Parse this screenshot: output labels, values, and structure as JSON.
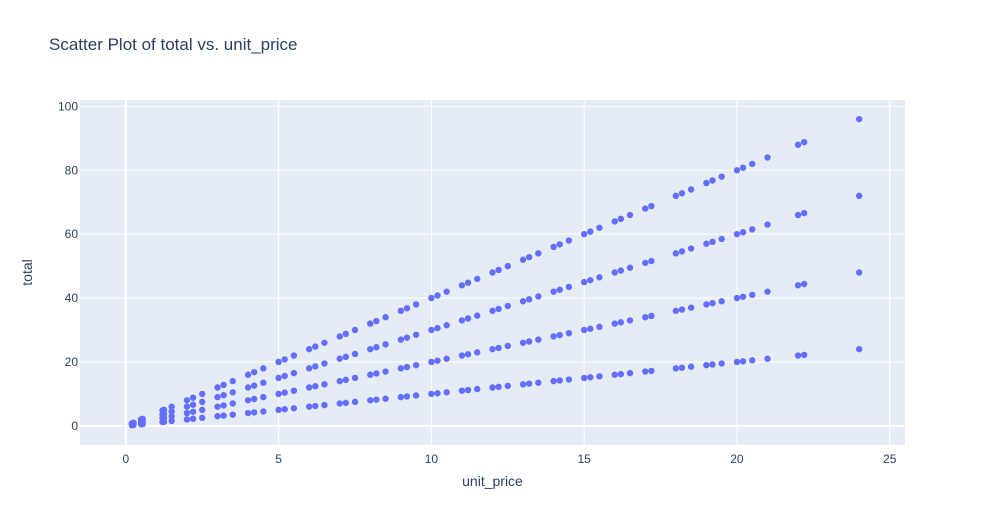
{
  "chart_data": {
    "type": "scatter",
    "title": "Scatter Plot of total vs. unit_price",
    "xlabel": "unit_price",
    "ylabel": "total",
    "xlim": [
      -1.5,
      25.5
    ],
    "ylim": [
      -6,
      102
    ],
    "xticks": [
      0,
      5,
      10,
      15,
      20,
      25
    ],
    "yticks": [
      0,
      20,
      40,
      60,
      80,
      100
    ],
    "grid": true,
    "marker_color": "#636efa",
    "plot_background": "#e5ecf6",
    "unit_prices": [
      0.2,
      0.25,
      0.5,
      0.55,
      1.2,
      1.25,
      1.5,
      2.0,
      2.2,
      2.5,
      3.0,
      3.2,
      3.5,
      4.0,
      4.2,
      4.5,
      5.0,
      5.2,
      5.5,
      6.0,
      6.2,
      6.5,
      7.0,
      7.2,
      7.5,
      8.0,
      8.2,
      8.5,
      9.0,
      9.2,
      9.5,
      10.0,
      10.2,
      10.5,
      11.0,
      11.2,
      11.5,
      12.0,
      12.2,
      12.5,
      13.0,
      13.2,
      13.5,
      14.0,
      14.2,
      14.5,
      15.0,
      15.2,
      15.5,
      16.0,
      16.2,
      16.5,
      17.0,
      17.2,
      18.0,
      18.2,
      18.5,
      19.0,
      19.2,
      19.5,
      20.0,
      20.2,
      20.5,
      21.0,
      22.0,
      22.2,
      24.0
    ],
    "quantities": [
      1,
      2,
      3,
      4
    ],
    "x": [],
    "y": []
  }
}
